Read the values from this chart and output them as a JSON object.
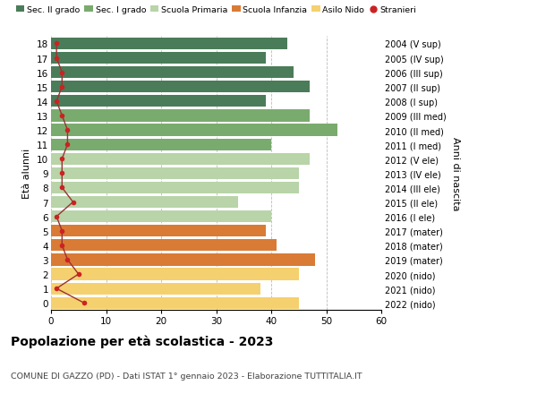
{
  "ages": [
    18,
    17,
    16,
    15,
    14,
    13,
    12,
    11,
    10,
    9,
    8,
    7,
    6,
    5,
    4,
    3,
    2,
    1,
    0
  ],
  "years": [
    "2004 (V sup)",
    "2005 (IV sup)",
    "2006 (III sup)",
    "2007 (II sup)",
    "2008 (I sup)",
    "2009 (III med)",
    "2010 (II med)",
    "2011 (I med)",
    "2012 (V ele)",
    "2013 (IV ele)",
    "2014 (III ele)",
    "2015 (II ele)",
    "2016 (I ele)",
    "2017 (mater)",
    "2018 (mater)",
    "2019 (mater)",
    "2020 (nido)",
    "2021 (nido)",
    "2022 (nido)"
  ],
  "bar_values": [
    43,
    39,
    44,
    47,
    39,
    47,
    52,
    40,
    47,
    45,
    45,
    34,
    40,
    39,
    41,
    48,
    45,
    38,
    45
  ],
  "stranieri": [
    1,
    1,
    2,
    2,
    1,
    2,
    3,
    3,
    2,
    2,
    2,
    4,
    1,
    2,
    2,
    3,
    5,
    1,
    6
  ],
  "bar_colors": [
    "#4a7c59",
    "#4a7c59",
    "#4a7c59",
    "#4a7c59",
    "#4a7c59",
    "#7aab6e",
    "#7aab6e",
    "#7aab6e",
    "#b8d4a8",
    "#b8d4a8",
    "#b8d4a8",
    "#b8d4a8",
    "#b8d4a8",
    "#d97b35",
    "#d97b35",
    "#d97b35",
    "#f5d06e",
    "#f5d06e",
    "#f5d06e"
  ],
  "legend_colors": [
    "#4a7c59",
    "#7aab6e",
    "#b8d4a8",
    "#d97b35",
    "#f5d06e"
  ],
  "legend_labels": [
    "Sec. II grado",
    "Sec. I grado",
    "Scuola Primaria",
    "Scuola Infanzia",
    "Asilo Nido",
    "Stranieri"
  ],
  "title": "Popolazione per età scolastica - 2023",
  "subtitle": "COMUNE DI GAZZO (PD) - Dati ISTAT 1° gennaio 2023 - Elaborazione TUTTITALIA.IT",
  "ylabel_left": "Età alunni",
  "ylabel_right": "Anni di nascita",
  "xlim": [
    0,
    60
  ],
  "bar_height": 0.82,
  "background_color": "#ffffff",
  "grid_color": "#bbbbbb",
  "stranieri_color": "#cc2222",
  "stranieri_line_color": "#993333"
}
